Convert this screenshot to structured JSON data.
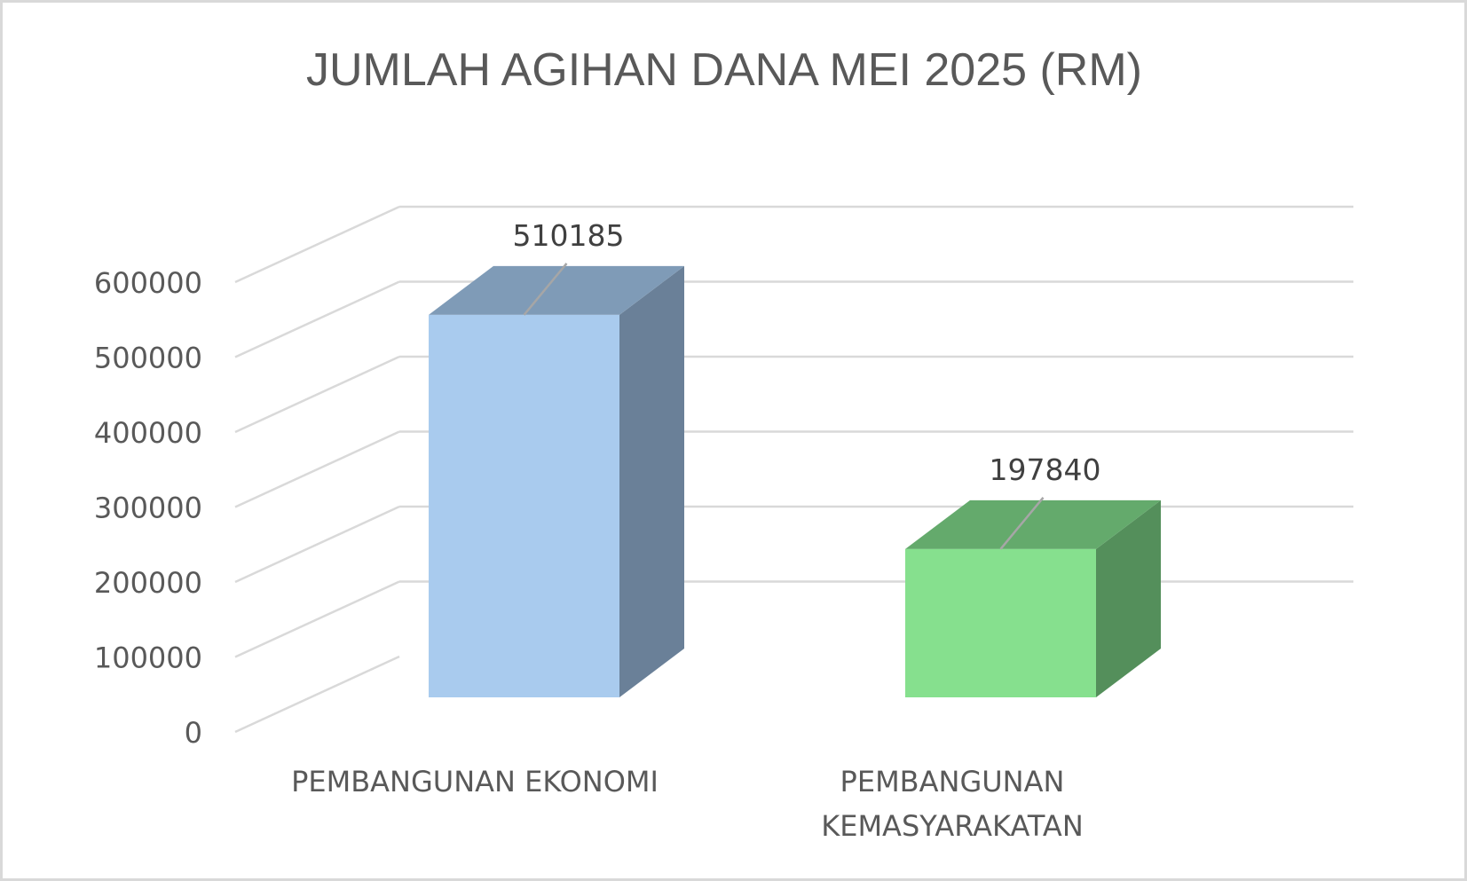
{
  "chart_data": {
    "type": "bar",
    "title": "JUMLAH AGIHAN DANA MEI 2025 (RM)",
    "xlabel": "",
    "ylabel": "",
    "ylim": [
      0,
      600000
    ],
    "yticks": [
      "0",
      "100000",
      "200000",
      "300000",
      "400000",
      "500000",
      "600000"
    ],
    "categories": [
      "PEMBANGUNAN EKONOMI",
      "PEMBANGUNAN KEMASYARAKATAN"
    ],
    "category_lines": [
      [
        "PEMBANGUNAN EKONOMI"
      ],
      [
        "PEMBANGUNAN",
        "KEMASYARAKATAN"
      ]
    ],
    "values": [
      510185,
      197840
    ],
    "data_labels": [
      "510185",
      "197840"
    ],
    "grid": true,
    "legend": "none",
    "style": "3d",
    "colors": {
      "bars": [
        {
          "front": "#a9cbee",
          "top": "#7f9bb7",
          "side": "#6a8098"
        },
        {
          "front": "#86e08e",
          "top": "#64aa6c",
          "side": "#548f5b"
        }
      ],
      "grid": "#d9d9d9",
      "text": "#595959",
      "leader": "#a6a6a6"
    }
  }
}
